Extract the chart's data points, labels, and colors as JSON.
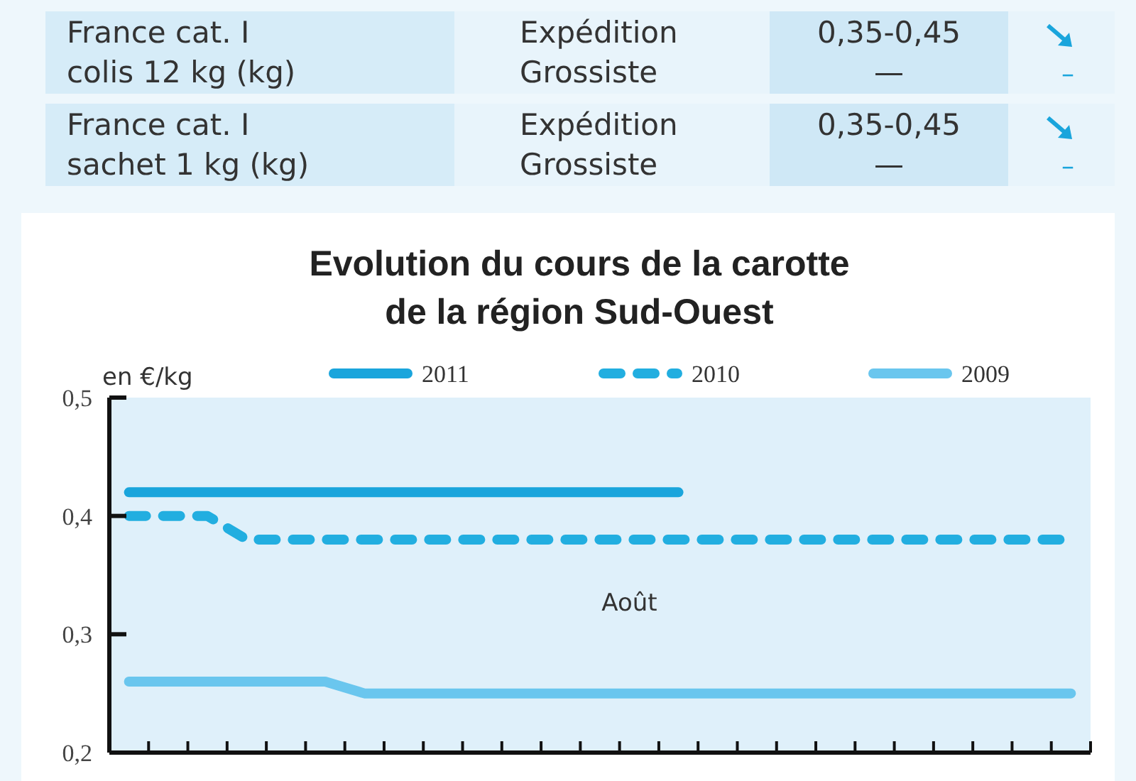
{
  "chart_data": [
    {
      "type": "other",
      "annotations": [
        "France cat. I",
        "colis 12 kg (kg)",
        "Expédition",
        "Grossiste",
        "0,35-0,45",
        "—",
        "–",
        "France cat. I",
        "sachet 1 kg (kg)",
        "Expédition",
        "Grossiste",
        "0,35-0,45",
        "—",
        "–"
      ]
    },
    {
      "type": "line",
      "title": "Evolution du cours de la carotte\nde la région Sud-Ouest",
      "ylabel": "en €/kg",
      "legend": "top",
      "tick_labels": "y",
      "categories": [
        null,
        null,
        null,
        null,
        null,
        null,
        null,
        null,
        null,
        null,
        null,
        null,
        null,
        null,
        null,
        null,
        null,
        null,
        null,
        null,
        null,
        null,
        null,
        null,
        null
      ],
      "ylim": [
        0.2,
        0.5
      ],
      "yticks": [
        {
          "value": 0.2,
          "label": "0,2"
        },
        {
          "value": 0.3,
          "label": "0,3"
        },
        {
          "value": 0.4,
          "label": "0,4"
        },
        {
          "value": 0.5,
          "label": "0,5"
        }
      ],
      "annotations": [
        "Août"
      ],
      "series": [
        {
          "name": "2011",
          "color": "#1aa5dc",
          "line_style": "solid",
          "values": [
            0.42,
            0.42,
            0.42,
            0.42,
            0.42,
            0.42,
            0.42,
            0.42,
            0.42,
            0.42,
            0.42,
            0.42,
            0.42,
            0.42,
            0.42,
            null,
            null,
            null,
            null,
            null,
            null,
            null,
            null,
            null,
            null
          ]
        },
        {
          "name": "2010",
          "color": "#22aee0",
          "line_style": "dashed",
          "values": [
            0.4,
            0.4,
            0.4,
            0.38,
            0.38,
            0.38,
            0.38,
            0.38,
            0.38,
            0.38,
            0.38,
            0.38,
            0.38,
            0.38,
            0.38,
            0.38,
            0.38,
            0.38,
            0.38,
            0.38,
            0.38,
            0.38,
            0.38,
            0.38,
            0.38
          ]
        },
        {
          "name": "2009",
          "color": "#6ac6ee",
          "line_style": "solid",
          "values": [
            0.26,
            0.26,
            0.26,
            0.26,
            0.26,
            0.26,
            0.25,
            0.25,
            0.25,
            0.25,
            0.25,
            0.25,
            0.25,
            0.25,
            0.25,
            0.25,
            0.25,
            0.25,
            0.25,
            0.25,
            0.25,
            0.25,
            0.25,
            0.25,
            0.25
          ]
        }
      ]
    }
  ]
}
